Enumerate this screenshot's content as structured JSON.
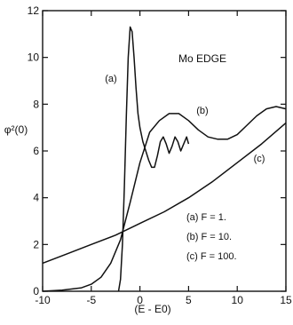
{
  "chart_data": {
    "type": "line",
    "title": "Mo EDGE",
    "xlabel": "(E - E0)",
    "ylabel": "φ²(0)",
    "xlim": [
      -10,
      15
    ],
    "ylim": [
      0,
      12
    ],
    "xticks": [
      -10,
      -5,
      0,
      5,
      10,
      15
    ],
    "yticks": [
      0,
      2,
      4,
      6,
      8,
      10,
      12
    ],
    "grid": false,
    "series": [
      {
        "name": "(a)",
        "label": "(a)",
        "points": [
          [
            -2.2,
            0
          ],
          [
            -2.0,
            0.5
          ],
          [
            -1.8,
            2.0
          ],
          [
            -1.6,
            4.5
          ],
          [
            -1.4,
            7.5
          ],
          [
            -1.2,
            10.0
          ],
          [
            -1.0,
            11.3
          ],
          [
            -0.8,
            11.1
          ],
          [
            -0.6,
            10.0
          ],
          [
            -0.4,
            8.7
          ],
          [
            -0.2,
            7.6
          ],
          [
            0,
            7.0
          ],
          [
            0.3,
            6.4
          ],
          [
            0.6,
            6.0
          ],
          [
            0.9,
            5.6
          ],
          [
            1.2,
            5.3
          ],
          [
            1.5,
            5.3
          ],
          [
            1.8,
            5.8
          ],
          [
            2.1,
            6.4
          ],
          [
            2.4,
            6.6
          ],
          [
            2.7,
            6.3
          ],
          [
            3.0,
            5.9
          ],
          [
            3.3,
            6.2
          ],
          [
            3.6,
            6.6
          ],
          [
            3.9,
            6.4
          ],
          [
            4.2,
            6.0
          ],
          [
            4.5,
            6.3
          ],
          [
            4.8,
            6.6
          ],
          [
            5.0,
            6.3
          ]
        ]
      },
      {
        "name": "(b)",
        "label": "(b)",
        "points": [
          [
            -10,
            0
          ],
          [
            -8,
            0.05
          ],
          [
            -6,
            0.15
          ],
          [
            -5,
            0.3
          ],
          [
            -4,
            0.6
          ],
          [
            -3,
            1.2
          ],
          [
            -2,
            2.2
          ],
          [
            -1,
            3.8
          ],
          [
            0,
            5.5
          ],
          [
            1,
            6.8
          ],
          [
            2,
            7.3
          ],
          [
            3,
            7.6
          ],
          [
            4,
            7.6
          ],
          [
            5,
            7.3
          ],
          [
            6,
            6.9
          ],
          [
            7,
            6.6
          ],
          [
            8,
            6.5
          ],
          [
            9,
            6.5
          ],
          [
            10,
            6.7
          ],
          [
            11,
            7.1
          ],
          [
            12,
            7.5
          ],
          [
            13,
            7.8
          ],
          [
            14,
            7.9
          ],
          [
            15,
            7.8
          ]
        ]
      },
      {
        "name": "(c)",
        "label": "(c)",
        "points": [
          [
            -10,
            1.2
          ],
          [
            -7.5,
            1.6
          ],
          [
            -5,
            2.0
          ],
          [
            -2.5,
            2.4
          ],
          [
            0,
            2.9
          ],
          [
            2.5,
            3.4
          ],
          [
            5,
            4.0
          ],
          [
            7.5,
            4.7
          ],
          [
            10,
            5.5
          ],
          [
            12.5,
            6.3
          ],
          [
            15,
            7.2
          ]
        ]
      }
    ],
    "legend": {
      "placement": "bottom-right",
      "entries": [
        "(a) F = 1.",
        "(b) F = 10.",
        "(c) F = 100."
      ]
    }
  }
}
